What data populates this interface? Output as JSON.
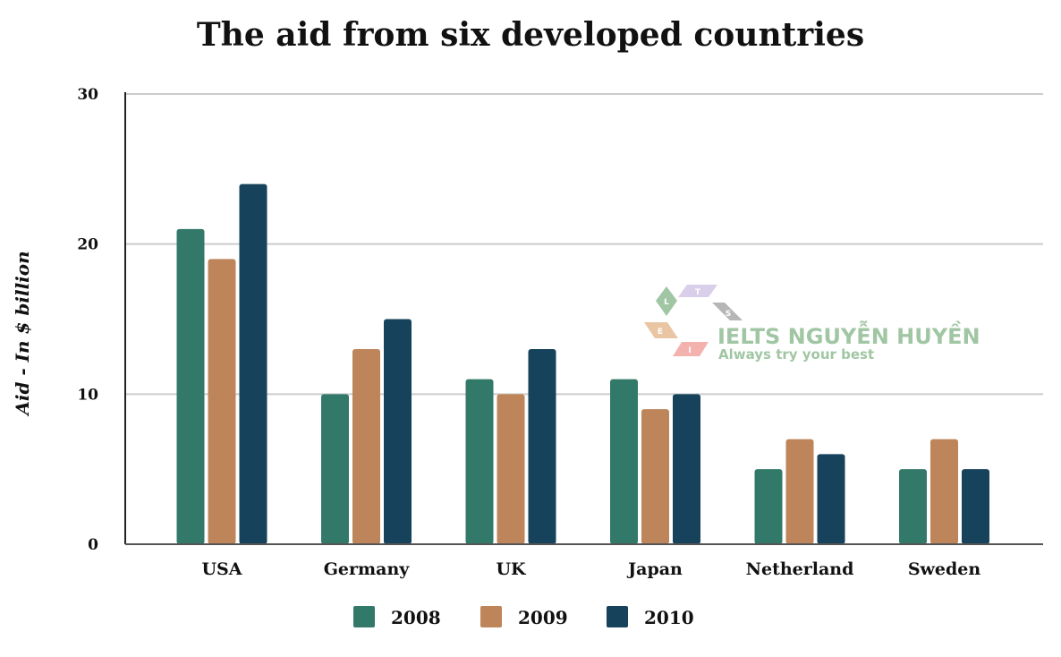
{
  "chart_data": {
    "type": "bar",
    "title": "The aid from six developed countries",
    "xlabel": "",
    "ylabel": "Aid - In $ billion",
    "ylim": [
      0,
      30
    ],
    "yticks": [
      0,
      10,
      20,
      30
    ],
    "grid": true,
    "legend_position": "bottom",
    "categories": [
      "USA",
      "Germany",
      "UK",
      "Japan",
      "Netherland",
      "Sweden"
    ],
    "series": [
      {
        "name": "2008",
        "color": "#33796a",
        "values": [
          21,
          10,
          11,
          11,
          5,
          5
        ]
      },
      {
        "name": "2009",
        "color": "#bf855a",
        "values": [
          19,
          13,
          10,
          9,
          7,
          7
        ]
      },
      {
        "name": "2010",
        "color": "#16425b",
        "values": [
          24,
          15,
          13,
          10,
          6,
          5
        ]
      }
    ]
  },
  "watermark": {
    "title": "IELTS NGUYỄN HUYỀN",
    "subtitle": "Always try your best",
    "letters": [
      "L",
      "T",
      "S",
      "E",
      "I"
    ]
  }
}
